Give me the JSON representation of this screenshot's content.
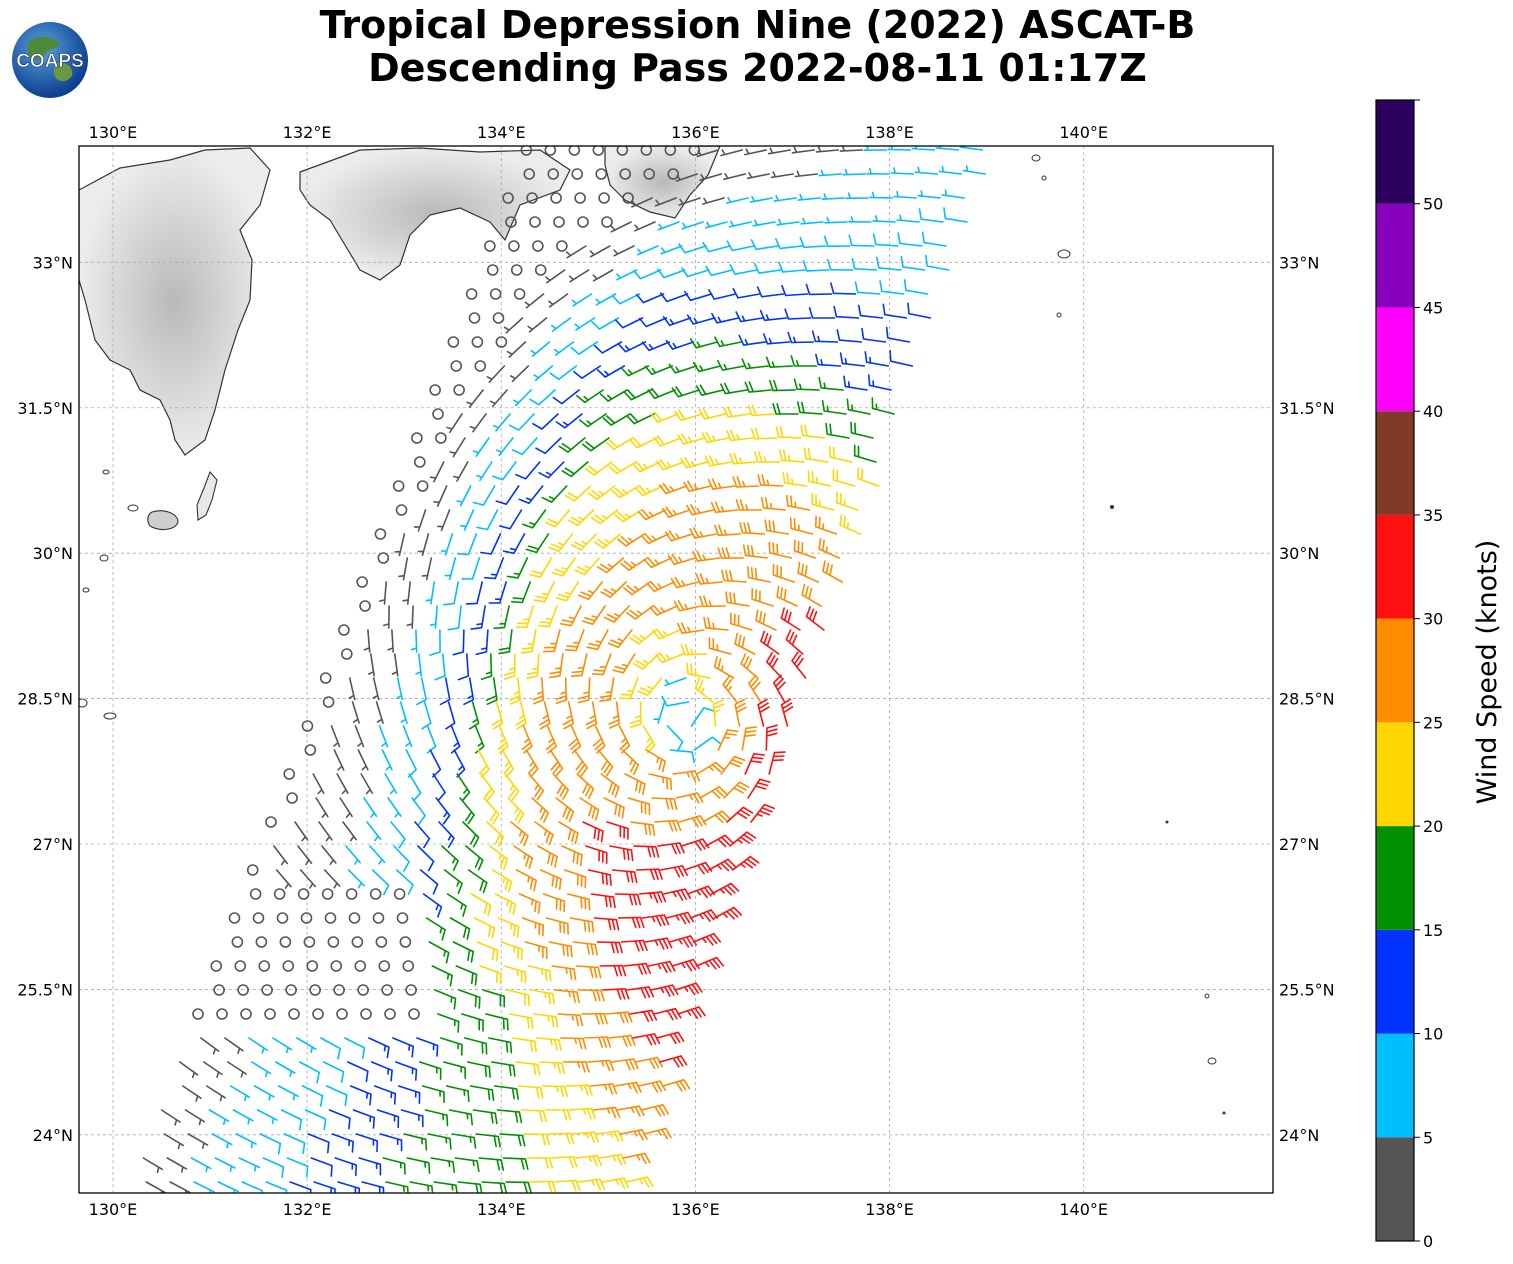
{
  "title": {
    "line1": "Tropical Depression Nine (2022) ASCAT-B",
    "line2": "Descending Pass 2022-08-11 01:17Z"
  },
  "logo": {
    "text": "COAPS",
    "icon": "globe-logo-icon"
  },
  "map": {
    "lon_range": [
      129.65,
      141.95
    ],
    "lat_range": [
      23.4,
      34.2
    ],
    "lon_ticks": [
      {
        "value": 130,
        "label": "130°E"
      },
      {
        "value": 132,
        "label": "132°E"
      },
      {
        "value": 134,
        "label": "134°E"
      },
      {
        "value": 136,
        "label": "136°E"
      },
      {
        "value": 138,
        "label": "138°E"
      },
      {
        "value": 140,
        "label": "140°E"
      }
    ],
    "lat_ticks": [
      {
        "value": 33,
        "label": "33°N"
      },
      {
        "value": 31.5,
        "label": "31.5°N"
      },
      {
        "value": 30,
        "label": "30°N"
      },
      {
        "value": 28.5,
        "label": "28.5°N"
      },
      {
        "value": 27,
        "label": "27°N"
      },
      {
        "value": 25.5,
        "label": "25.5°N"
      },
      {
        "value": 24,
        "label": "24°N"
      }
    ],
    "grid": true,
    "storm_center": {
      "lon": 135.9,
      "lat": 28.3
    }
  },
  "chart_data": {
    "type": "heatmap",
    "title": "Tropical Depression Nine (2022) ASCAT-B Descending Pass 2022-08-11 01:17Z",
    "colorbar": {
      "label": "Wind Speed (knots)",
      "ticks": [
        0,
        5,
        10,
        15,
        20,
        25,
        30,
        35,
        40,
        45,
        50
      ],
      "range": [
        0,
        55
      ],
      "bins": [
        {
          "min": 0,
          "max": 5,
          "color": "#555555"
        },
        {
          "min": 5,
          "max": 10,
          "color": "#00bfff"
        },
        {
          "min": 10,
          "max": 15,
          "color": "#0033ff"
        },
        {
          "min": 15,
          "max": 20,
          "color": "#009000"
        },
        {
          "min": 20,
          "max": 25,
          "color": "#ffd700"
        },
        {
          "min": 25,
          "max": 30,
          "color": "#ff8c00"
        },
        {
          "min": 30,
          "max": 35,
          "color": "#ff1010"
        },
        {
          "min": 35,
          "max": 40,
          "color": "#7f3a28"
        },
        {
          "min": 40,
          "max": 45,
          "color": "#ff00ff"
        },
        {
          "min": 45,
          "max": 50,
          "color": "#8800bb"
        },
        {
          "min": 50,
          "max": 55,
          "color": "#2b005f"
        }
      ]
    }
  }
}
